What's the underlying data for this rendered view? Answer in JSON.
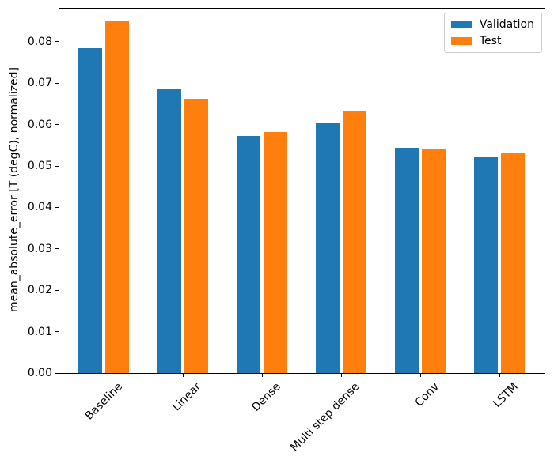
{
  "chart_data": {
    "type": "bar",
    "title": "",
    "xlabel": "",
    "ylabel": "mean_absolute_error [T (degC), normalized]",
    "categories": [
      "Baseline",
      "Linear",
      "Dense",
      "Multi step dense",
      "Conv",
      "LSTM"
    ],
    "series": [
      {
        "name": "Validation",
        "color": "#1f77b4",
        "values": [
          0.0785,
          0.0685,
          0.0573,
          0.0605,
          0.0545,
          0.0521
        ]
      },
      {
        "name": "Test",
        "color": "#ff7f0e",
        "values": [
          0.0852,
          0.0663,
          0.0582,
          0.0633,
          0.0542,
          0.0531
        ]
      }
    ],
    "ylim": [
      0,
      0.088
    ],
    "yticks": [
      0.0,
      0.01,
      0.02,
      0.03,
      0.04,
      0.05,
      0.06,
      0.07,
      0.08
    ],
    "ytick_labels": [
      "0.00",
      "0.01",
      "0.02",
      "0.03",
      "0.04",
      "0.05",
      "0.06",
      "0.07",
      "0.08"
    ],
    "x_tick_rotation": 45,
    "grid": false,
    "legend_position": "upper right",
    "plot_background": "#ffffff",
    "spine_color": "#000000",
    "legend_border_color": "#cccccc"
  }
}
